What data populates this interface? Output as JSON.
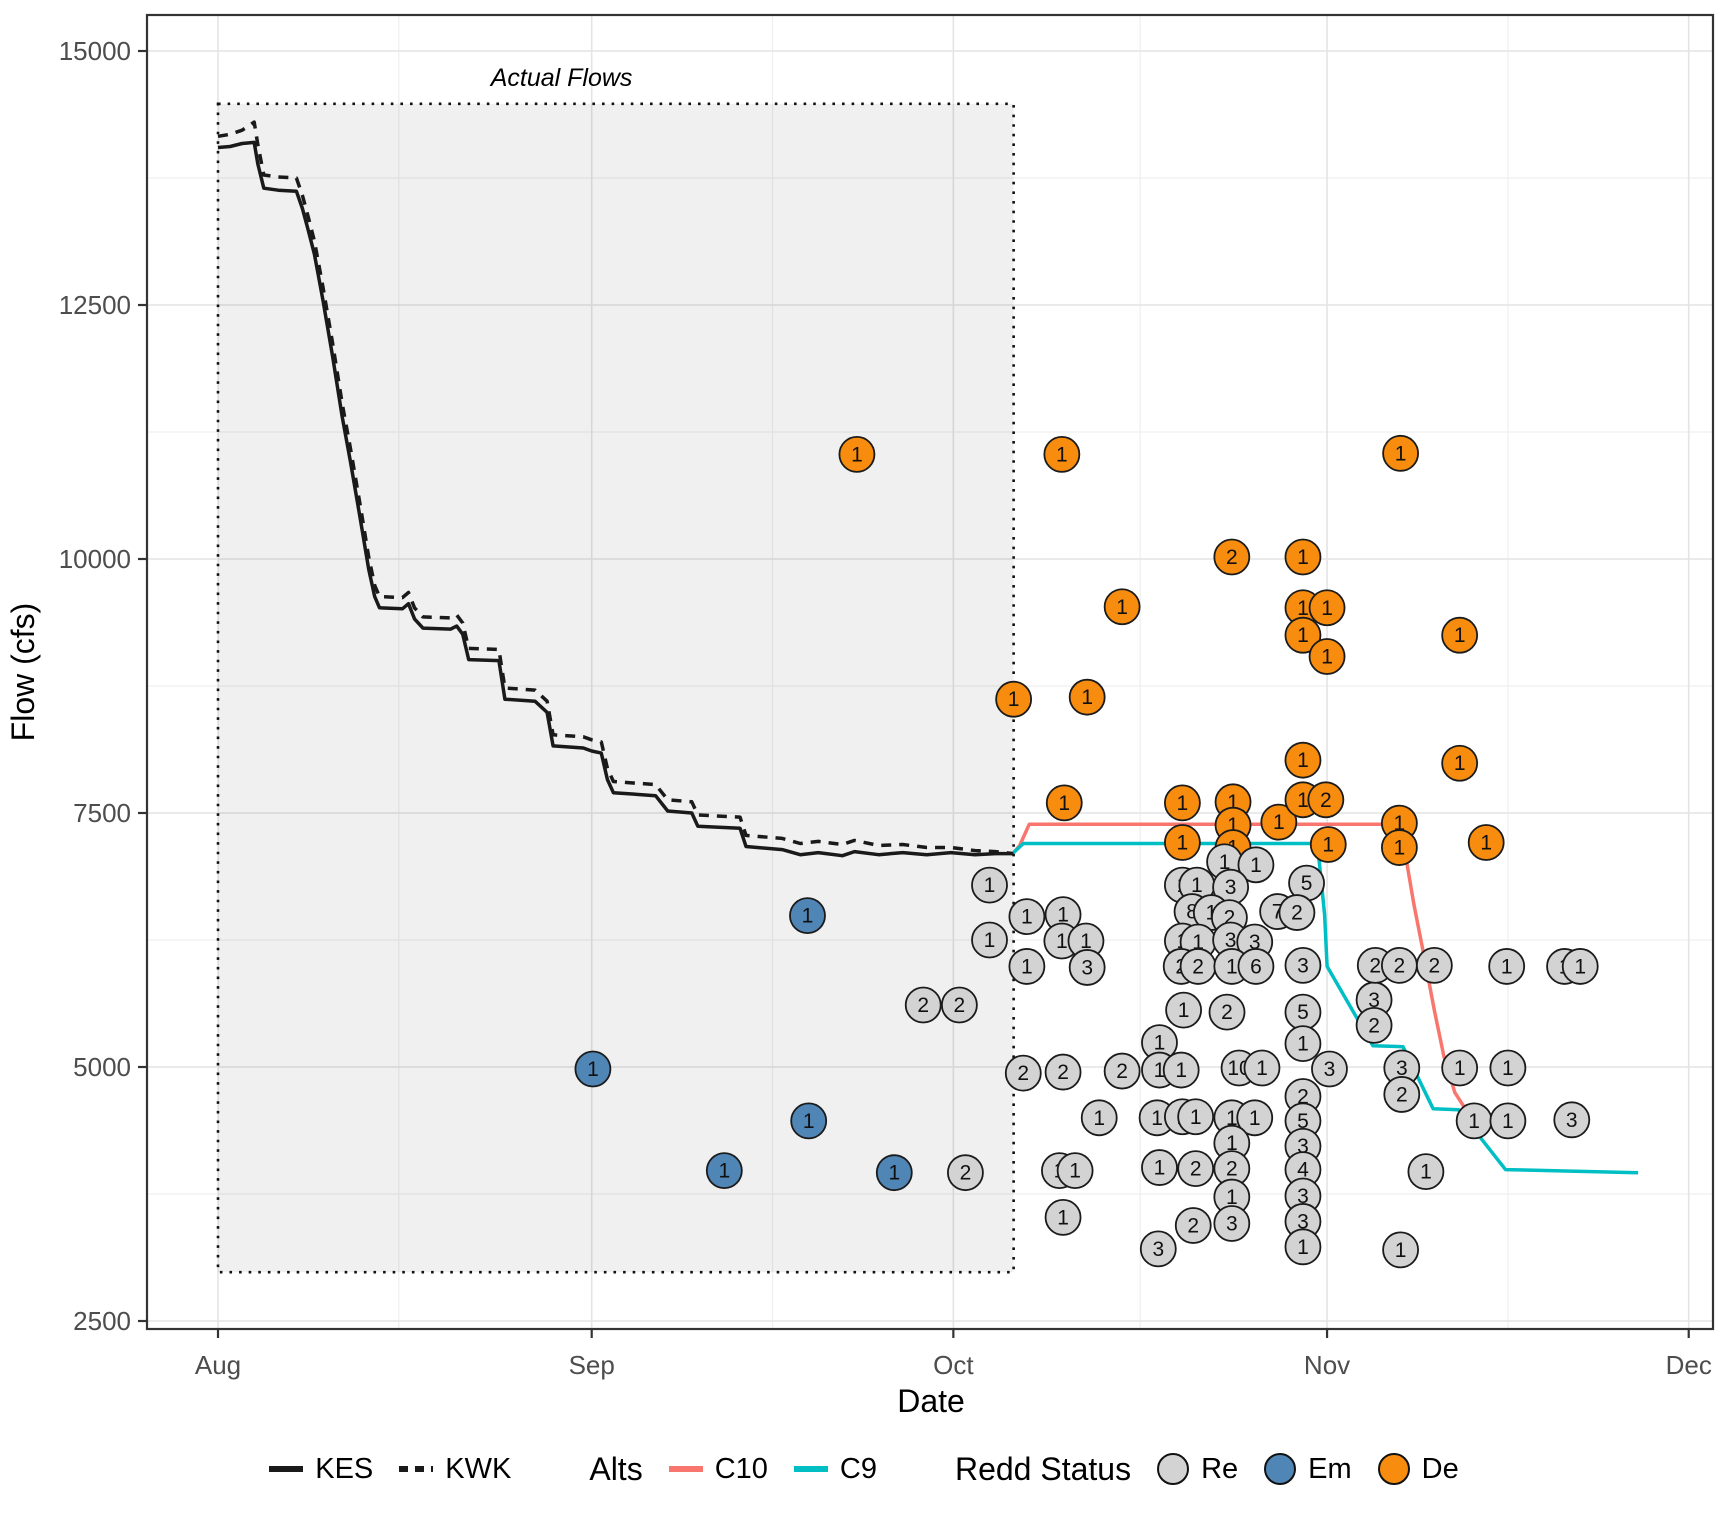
{
  "chart_data": {
    "type": "line+scatter",
    "xlabel": "Date",
    "ylabel": "Flow (cfs)",
    "x_ticks": [
      {
        "day": 0,
        "label": "Aug"
      },
      {
        "day": 31,
        "label": "Sep"
      },
      {
        "day": 61,
        "label": "Oct"
      },
      {
        "day": 92,
        "label": "Nov"
      },
      {
        "day": 122,
        "label": "Dec"
      }
    ],
    "x_minor_days": [
      15,
      46,
      76.5,
      107
    ],
    "y_ticks": [
      2500,
      5000,
      7500,
      10000,
      12500,
      15000
    ],
    "y_minor": [
      3750,
      6250,
      8750,
      11250,
      13750
    ],
    "ylim": [
      2420,
      15350
    ],
    "xlim_days": [
      -5.9,
      124
    ],
    "grid": true,
    "annotation": {
      "text": "Actual Flows",
      "day_center": 28.5
    },
    "actual_flows_box": {
      "day_start": 0,
      "day_end": 66,
      "cfs_min": 2980,
      "cfs_max": 14480
    },
    "flow_series": [
      {
        "name": "KES",
        "style": "solid",
        "color": "#1A1A1A",
        "points": [
          [
            0,
            14050
          ],
          [
            1,
            14060
          ],
          [
            2,
            14090
          ],
          [
            3,
            14100
          ],
          [
            3.3,
            13890
          ],
          [
            3.8,
            13650
          ],
          [
            5,
            13630
          ],
          [
            6.5,
            13620
          ],
          [
            7,
            13450
          ],
          [
            7.5,
            13230
          ],
          [
            8,
            13000
          ],
          [
            8.7,
            12550
          ],
          [
            9.5,
            12000
          ],
          [
            10.3,
            11400
          ],
          [
            11,
            10950
          ],
          [
            11.8,
            10400
          ],
          [
            12.5,
            9900
          ],
          [
            13,
            9630
          ],
          [
            13.4,
            9520
          ],
          [
            15.3,
            9510
          ],
          [
            15.8,
            9560
          ],
          [
            16.3,
            9410
          ],
          [
            17,
            9320
          ],
          [
            19.3,
            9310
          ],
          [
            19.8,
            9340
          ],
          [
            20.3,
            9260
          ],
          [
            20.8,
            9010
          ],
          [
            23.3,
            9000
          ],
          [
            23.8,
            8620
          ],
          [
            26.3,
            8600
          ],
          [
            27.3,
            8490
          ],
          [
            27.8,
            8160
          ],
          [
            30.3,
            8140
          ],
          [
            31,
            8110
          ],
          [
            31.8,
            8090
          ],
          [
            32.3,
            7830
          ],
          [
            32.8,
            7700
          ],
          [
            36.3,
            7670
          ],
          [
            37.3,
            7520
          ],
          [
            39.3,
            7500
          ],
          [
            39.8,
            7370
          ],
          [
            43.3,
            7350
          ],
          [
            43.8,
            7170
          ],
          [
            46.8,
            7140
          ],
          [
            48.3,
            7090
          ],
          [
            49.8,
            7110
          ],
          [
            51.8,
            7080
          ],
          [
            52.8,
            7120
          ],
          [
            54.8,
            7090
          ],
          [
            56.8,
            7110
          ],
          [
            58.8,
            7090
          ],
          [
            60.8,
            7110
          ],
          [
            62.8,
            7090
          ],
          [
            64.5,
            7100
          ],
          [
            66,
            7100
          ]
        ]
      },
      {
        "name": "KWK",
        "style": "dashed",
        "color": "#1A1A1A",
        "points": [
          [
            0,
            14160
          ],
          [
            1,
            14180
          ],
          [
            2,
            14220
          ],
          [
            3,
            14300
          ],
          [
            3.3,
            14080
          ],
          [
            3.8,
            13780
          ],
          [
            5,
            13760
          ],
          [
            6.5,
            13750
          ],
          [
            7,
            13580
          ],
          [
            7.5,
            13360
          ],
          [
            8,
            13130
          ],
          [
            8.7,
            12680
          ],
          [
            9.5,
            12130
          ],
          [
            10.3,
            11530
          ],
          [
            11,
            11080
          ],
          [
            11.8,
            10530
          ],
          [
            12.5,
            10020
          ],
          [
            13,
            9740
          ],
          [
            13.4,
            9630
          ],
          [
            15.3,
            9620
          ],
          [
            15.8,
            9670
          ],
          [
            16.3,
            9520
          ],
          [
            17,
            9430
          ],
          [
            19.3,
            9420
          ],
          [
            19.8,
            9450
          ],
          [
            20.3,
            9370
          ],
          [
            20.8,
            9120
          ],
          [
            23.3,
            9110
          ],
          [
            23.8,
            8730
          ],
          [
            26.3,
            8710
          ],
          [
            27.3,
            8600
          ],
          [
            27.8,
            8270
          ],
          [
            30.3,
            8250
          ],
          [
            31,
            8220
          ],
          [
            31.8,
            8200
          ],
          [
            32.3,
            7940
          ],
          [
            32.8,
            7810
          ],
          [
            36.3,
            7780
          ],
          [
            37.3,
            7630
          ],
          [
            39.3,
            7610
          ],
          [
            39.8,
            7480
          ],
          [
            43.3,
            7460
          ],
          [
            43.8,
            7280
          ],
          [
            46.8,
            7250
          ],
          [
            48.3,
            7200
          ],
          [
            49.8,
            7220
          ],
          [
            51.8,
            7190
          ],
          [
            52.8,
            7230
          ],
          [
            54.8,
            7180
          ],
          [
            56.8,
            7190
          ],
          [
            58.8,
            7160
          ],
          [
            60.8,
            7160
          ],
          [
            62.8,
            7130
          ],
          [
            64.5,
            7120
          ],
          [
            66,
            7100
          ]
        ]
      },
      {
        "name": "C10",
        "style": "solid",
        "color": "#F8766D",
        "points": [
          [
            66,
            7110
          ],
          [
            66.5,
            7180
          ],
          [
            67.3,
            7390
          ],
          [
            97.8,
            7390
          ],
          [
            98.3,
            7230
          ],
          [
            99.2,
            6600
          ],
          [
            100.1,
            6060
          ],
          [
            100.9,
            5560
          ],
          [
            101.7,
            5100
          ],
          [
            102.6,
            4750
          ],
          [
            103.4,
            4600
          ],
          [
            104,
            4570
          ]
        ]
      },
      {
        "name": "C9",
        "style": "solid",
        "color": "#00BFC4",
        "points": [
          [
            66,
            7110
          ],
          [
            66.8,
            7200
          ],
          [
            91.2,
            7200
          ],
          [
            91.8,
            6500
          ],
          [
            92,
            5990
          ],
          [
            95.8,
            5210
          ],
          [
            98.3,
            5200
          ],
          [
            100.8,
            4590
          ],
          [
            102.9,
            4580
          ],
          [
            106.8,
            3990
          ],
          [
            117.8,
            3960
          ]
        ]
      }
    ],
    "point_format": [
      "day_offset_from_Aug1",
      "flow_cfs",
      "count_label",
      "redd_status"
    ],
    "redd_points": [
      [
        53.0,
        11030,
        "1",
        "De"
      ],
      [
        70.0,
        11030,
        "1",
        "De"
      ],
      [
        98.1,
        11040,
        "1",
        "De"
      ],
      [
        84.1,
        10020,
        "2",
        "De"
      ],
      [
        90.0,
        10020,
        "1",
        "De"
      ],
      [
        75.0,
        9530,
        "1",
        "De"
      ],
      [
        90.0,
        9520,
        "1",
        "De"
      ],
      [
        92.0,
        9520,
        "1",
        "De"
      ],
      [
        90.0,
        9250,
        "1",
        "De"
      ],
      [
        103.0,
        9250,
        "1",
        "De"
      ],
      [
        92.0,
        9040,
        "1",
        "De"
      ],
      [
        66.0,
        8620,
        "1",
        "De"
      ],
      [
        72.1,
        8640,
        "1",
        "De"
      ],
      [
        70.2,
        7600,
        "1",
        "De"
      ],
      [
        80.0,
        7600,
        "1",
        "De"
      ],
      [
        84.2,
        7610,
        "1",
        "De"
      ],
      [
        84.2,
        7380,
        "1",
        "De"
      ],
      [
        84.2,
        7160,
        "1",
        "De"
      ],
      [
        80.0,
        7210,
        "1",
        "De"
      ],
      [
        88.0,
        7410,
        "1",
        "De"
      ],
      [
        90.0,
        8020,
        "1",
        "De"
      ],
      [
        90.0,
        7630,
        "1",
        "De"
      ],
      [
        91.9,
        7630,
        "2",
        "De"
      ],
      [
        92.1,
        7190,
        "1",
        "De"
      ],
      [
        98.0,
        7400,
        "1",
        "De"
      ],
      [
        98.0,
        7160,
        "1",
        "De"
      ],
      [
        103.0,
        7990,
        "1",
        "De"
      ],
      [
        105.2,
        7210,
        "1",
        "De"
      ],
      [
        31.1,
        4980,
        "1",
        "Em"
      ],
      [
        48.9,
        6490,
        "1",
        "Em"
      ],
      [
        49.0,
        4470,
        "1",
        "Em"
      ],
      [
        42.0,
        3980,
        "1",
        "Em"
      ],
      [
        56.1,
        3960,
        "1",
        "Em"
      ],
      [
        64.0,
        6790,
        "1",
        "Re"
      ],
      [
        64.0,
        6250,
        "1",
        "Re"
      ],
      [
        67.1,
        6480,
        "1",
        "Re"
      ],
      [
        70.1,
        6500,
        "1",
        "Re"
      ],
      [
        70.0,
        6240,
        "1",
        "Re"
      ],
      [
        72.0,
        6240,
        "1",
        "Re"
      ],
      [
        67.1,
        5990,
        "1",
        "Re"
      ],
      [
        72.1,
        5980,
        "3",
        "Re"
      ],
      [
        58.5,
        5610,
        "2",
        "Re"
      ],
      [
        61.5,
        5610,
        "2",
        "Re"
      ],
      [
        62.0,
        3960,
        "2",
        "Re"
      ],
      [
        66.8,
        4940,
        "2",
        "Re"
      ],
      [
        70.1,
        4950,
        "2",
        "Re"
      ],
      [
        75.0,
        4960,
        "2",
        "Re"
      ],
      [
        69.8,
        3980,
        "1",
        "Re"
      ],
      [
        71.1,
        3980,
        "1",
        "Re"
      ],
      [
        70.1,
        3520,
        "1",
        "Re"
      ],
      [
        73.1,
        4500,
        "1",
        "Re"
      ],
      [
        78.1,
        5240,
        "1",
        "Re"
      ],
      [
        80.1,
        5560,
        "1",
        "Re"
      ],
      [
        83.7,
        5540,
        "2",
        "Re"
      ],
      [
        90.0,
        5540,
        "5",
        "Re"
      ],
      [
        78.1,
        4970,
        "1",
        "Re"
      ],
      [
        79.9,
        4970,
        "1",
        "Re"
      ],
      [
        84.7,
        4990,
        "10",
        "Re"
      ],
      [
        86.6,
        4990,
        "1",
        "Re"
      ],
      [
        92.2,
        4980,
        "3",
        "Re"
      ],
      [
        98.2,
        4990,
        "3",
        "Re"
      ],
      [
        103.0,
        4990,
        "1",
        "Re"
      ],
      [
        90.0,
        5230,
        "1",
        "Re"
      ],
      [
        77.9,
        4500,
        "1",
        "Re"
      ],
      [
        80.0,
        4510,
        "1",
        "Re"
      ],
      [
        81.1,
        4510,
        "1",
        "Re"
      ],
      [
        84.1,
        4500,
        "1",
        "Re"
      ],
      [
        86.0,
        4500,
        "1",
        "Re"
      ],
      [
        90.0,
        4710,
        "2",
        "Re"
      ],
      [
        90.0,
        4470,
        "5",
        "Re"
      ],
      [
        90.0,
        4220,
        "3",
        "Re"
      ],
      [
        90.0,
        3990,
        "4",
        "Re"
      ],
      [
        90.0,
        3730,
        "3",
        "Re"
      ],
      [
        90.0,
        3480,
        "3",
        "Re"
      ],
      [
        90.0,
        3230,
        "1",
        "Re"
      ],
      [
        84.1,
        4250,
        "1",
        "Re"
      ],
      [
        78.1,
        4010,
        "1",
        "Re"
      ],
      [
        81.1,
        4000,
        "2",
        "Re"
      ],
      [
        84.1,
        4000,
        "2",
        "Re"
      ],
      [
        84.1,
        3720,
        "1",
        "Re"
      ],
      [
        78.0,
        3210,
        "3",
        "Re"
      ],
      [
        80.9,
        3440,
        "2",
        "Re"
      ],
      [
        84.1,
        3460,
        "3",
        "Re"
      ],
      [
        98.2,
        4730,
        "2",
        "Re"
      ],
      [
        95.9,
        5660,
        "3",
        "Re"
      ],
      [
        95.9,
        5410,
        "2",
        "Re"
      ],
      [
        96.0,
        6000,
        "2",
        "Re"
      ],
      [
        98.0,
        6000,
        "2",
        "Re"
      ],
      [
        100.9,
        6000,
        "2",
        "Re"
      ],
      [
        106.9,
        5990,
        "1",
        "Re"
      ],
      [
        111.7,
        5990,
        "1",
        "Re"
      ],
      [
        113.0,
        5990,
        "1",
        "Re"
      ],
      [
        107.0,
        4990,
        "1",
        "Re"
      ],
      [
        104.2,
        4470,
        "1",
        "Re"
      ],
      [
        107.0,
        4470,
        "1",
        "Re"
      ],
      [
        112.3,
        4480,
        "3",
        "Re"
      ],
      [
        100.2,
        3970,
        "1",
        "Re"
      ],
      [
        98.1,
        3200,
        "1",
        "Re"
      ],
      [
        83.5,
        7020,
        "1",
        "Re"
      ],
      [
        86.1,
        6990,
        "1",
        "Re"
      ],
      [
        80.0,
        6790,
        "1",
        "Re"
      ],
      [
        81.2,
        6790,
        "1",
        "Re"
      ],
      [
        84.0,
        6770,
        "3",
        "Re"
      ],
      [
        90.3,
        6810,
        "5",
        "Re"
      ],
      [
        80.8,
        6530,
        "8",
        "Re"
      ],
      [
        82.4,
        6520,
        "1",
        "Re"
      ],
      [
        83.9,
        6470,
        "2",
        "Re"
      ],
      [
        87.9,
        6530,
        "7",
        "Re"
      ],
      [
        89.5,
        6520,
        "2",
        "Re"
      ],
      [
        80.0,
        6240,
        "1",
        "Re"
      ],
      [
        81.3,
        6230,
        "1",
        "Re"
      ],
      [
        84.0,
        6250,
        "3",
        "Re"
      ],
      [
        86.0,
        6230,
        "3",
        "Re"
      ],
      [
        79.9,
        5990,
        "2",
        "Re"
      ],
      [
        81.3,
        5990,
        "2",
        "Re"
      ],
      [
        84.1,
        5990,
        "1",
        "Re"
      ],
      [
        86.1,
        5990,
        "6",
        "Re"
      ],
      [
        90.0,
        6000,
        "3",
        "Re"
      ]
    ],
    "status_colors": {
      "Re": "#D3D3D3",
      "Em": "#4F86B5",
      "De": "#F78C0E"
    },
    "panel": {
      "background": "#FFFFFF",
      "grid_major": "#E4E4E4",
      "grid_minor": "#EFEFEF",
      "border": "#333333",
      "tick_text": "#4D4D4D",
      "shade_fill_opacity": 0.06
    },
    "legend": {
      "lines": [
        {
          "label": "KES",
          "style": "solid"
        },
        {
          "label": "KWK",
          "style": "dashed"
        }
      ],
      "alts_title": "Alts",
      "alts": [
        {
          "label": "C10",
          "color": "#F8766D"
        },
        {
          "label": "C9",
          "color": "#00BFC4"
        }
      ],
      "redd_title": "Redd Status",
      "statuses": [
        {
          "label": "Re",
          "color": "#D3D3D3"
        },
        {
          "label": "Em",
          "color": "#4F86B5"
        },
        {
          "label": "De",
          "color": "#F78C0E"
        }
      ]
    }
  }
}
